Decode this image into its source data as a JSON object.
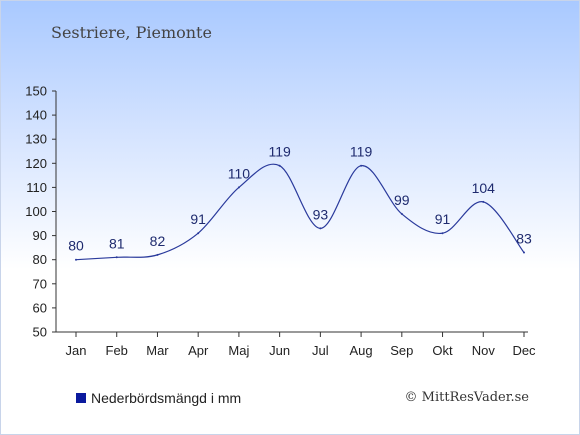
{
  "title": "Sestriere, Piemonte",
  "legend": {
    "label": "Nederbördsmängd i mm",
    "color": "#0b1a9e"
  },
  "copyright": "© MittResVader.se",
  "chart_data": {
    "type": "line",
    "categories": [
      "Jan",
      "Feb",
      "Mar",
      "Apr",
      "Maj",
      "Jun",
      "Jul",
      "Aug",
      "Sep",
      "Okt",
      "Nov",
      "Dec"
    ],
    "series": [
      {
        "name": "Nederbördsmängd i mm",
        "values": [
          80,
          81,
          82,
          91,
          110,
          119,
          93,
          119,
          99,
          91,
          104,
          83
        ],
        "color": "#2a3a9c"
      }
    ],
    "ylim": [
      50,
      150
    ],
    "yticks": [
      50,
      60,
      70,
      80,
      90,
      100,
      110,
      120,
      130,
      140,
      150
    ],
    "data_labels": true,
    "grid": false,
    "legend_position": "bottom-left"
  }
}
